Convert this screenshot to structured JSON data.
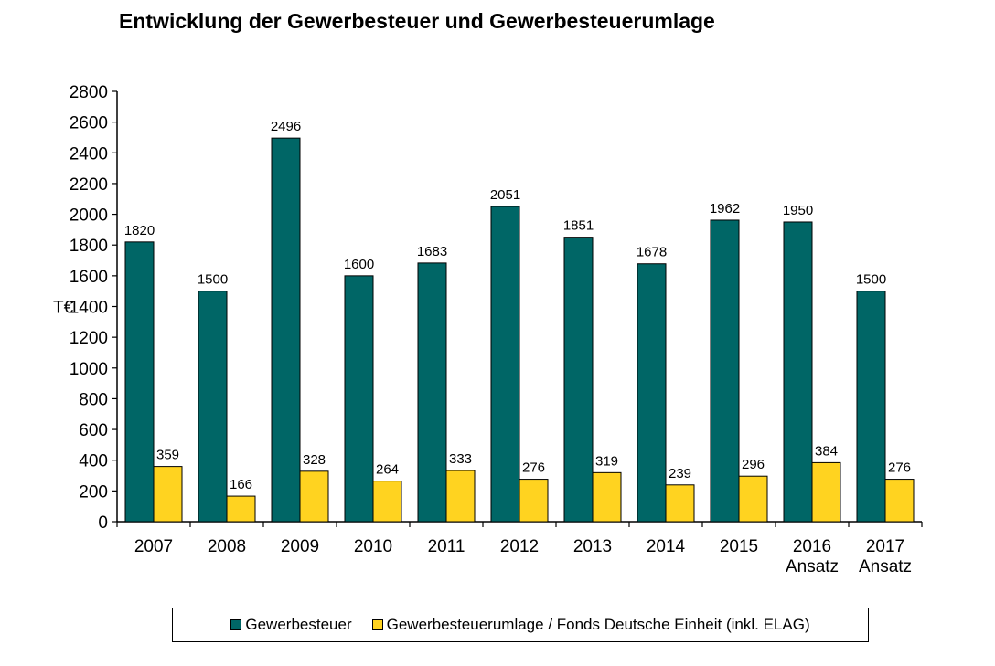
{
  "chart_data": {
    "type": "bar",
    "title": "Entwicklung der Gewerbesteuer und Gewerbesteuerumlage",
    "ylabel": "T€",
    "xlabel": "",
    "ylim": [
      0,
      2800
    ],
    "ytick_step": 200,
    "grid": false,
    "legend_position": "bottom",
    "categories": [
      [
        "2007"
      ],
      [
        "2008"
      ],
      [
        "2009"
      ],
      [
        "2010"
      ],
      [
        "2011"
      ],
      [
        "2012"
      ],
      [
        "2013"
      ],
      [
        "2014"
      ],
      [
        "2015"
      ],
      [
        "2016",
        "Ansatz"
      ],
      [
        "2017",
        "Ansatz"
      ]
    ],
    "series": [
      {
        "name": "Gewerbesteuer",
        "color": "#006666",
        "values": [
          1820,
          1500,
          2496,
          1600,
          1683,
          2051,
          1851,
          1678,
          1962,
          1950,
          1500
        ]
      },
      {
        "name": "Gewerbesteuerumlage / Fonds Deutsche Einheit (inkl. ELAG)",
        "color": "#FFD320",
        "values": [
          359,
          166,
          328,
          264,
          333,
          276,
          319,
          239,
          296,
          384,
          276
        ]
      }
    ]
  }
}
